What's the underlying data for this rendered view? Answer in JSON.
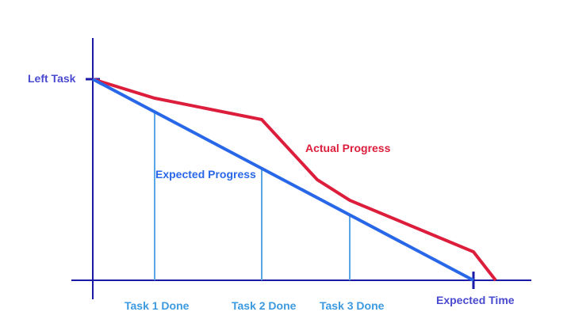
{
  "labels": {
    "left_task": "Left Task",
    "expected_time": "Expected Time",
    "actual_progress": "Actual Progress",
    "expected_progress": "Expected Progress",
    "task1": "Task 1 Done",
    "task2": "Task 2 Done",
    "task3": "Task 3 Done"
  },
  "colors": {
    "axis": "#1a1aa6",
    "actual": "#dc1e3c",
    "expected": "#2868e8",
    "marker": "#5aa6e6",
    "axis_label": "#4a4ad0",
    "marker_label": "#3c9ae0"
  }
}
